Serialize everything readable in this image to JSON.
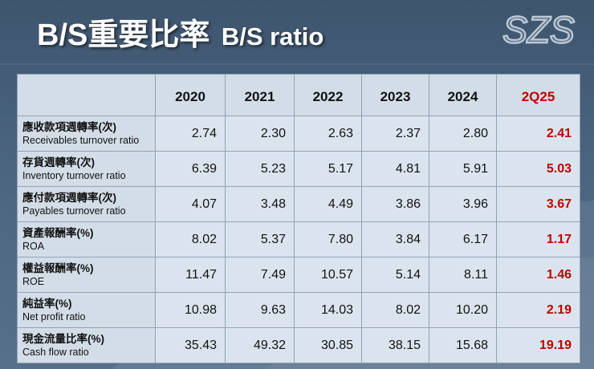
{
  "title": {
    "zh": "B/S重要比率",
    "en": "B/S ratio"
  },
  "logo": {
    "text": "SZS"
  },
  "colors": {
    "latest_highlight": "#c00000",
    "title_text": "#ffffff",
    "table_header_bg": "#d3dde8",
    "table_cell_bg": "#dbe4ee"
  },
  "table": {
    "columns": [
      "",
      "2020",
      "2021",
      "2022",
      "2023",
      "2024",
      "2Q25"
    ],
    "rows": [
      {
        "label_zh": "應收款項週轉率(次)",
        "label_en": "Receivables turnover ratio",
        "values": [
          "2.74",
          "2.30",
          "2.63",
          "2.37",
          "2.80",
          "2.41"
        ]
      },
      {
        "label_zh": "存貨週轉率(次)",
        "label_en": "Inventory turnover ratio",
        "values": [
          "6.39",
          "5.23",
          "5.17",
          "4.81",
          "5.91",
          "5.03"
        ]
      },
      {
        "label_zh": "應付款項週轉率(次)",
        "label_en": "Payables turnover ratio",
        "values": [
          "4.07",
          "3.48",
          "4.49",
          "3.86",
          "3.96",
          "3.67"
        ]
      },
      {
        "label_zh": "資產報酬率(%)",
        "label_en": "ROA",
        "values": [
          "8.02",
          "5.37",
          "7.80",
          "3.84",
          "6.17",
          "1.17"
        ]
      },
      {
        "label_zh": "權益報酬率(%)",
        "label_en": "ROE",
        "values": [
          "11.47",
          "7.49",
          "10.57",
          "5.14",
          "8.11",
          "1.46"
        ]
      },
      {
        "label_zh": "純益率(%)",
        "label_en": "Net profit ratio",
        "values": [
          "10.98",
          "9.63",
          "14.03",
          "8.02",
          "10.20",
          "2.19"
        ]
      },
      {
        "label_zh": "現金流量比率(%)",
        "label_en": "Cash flow ratio",
        "values": [
          "35.43",
          "49.32",
          "30.85",
          "38.15",
          "15.68",
          "19.19"
        ]
      }
    ]
  }
}
